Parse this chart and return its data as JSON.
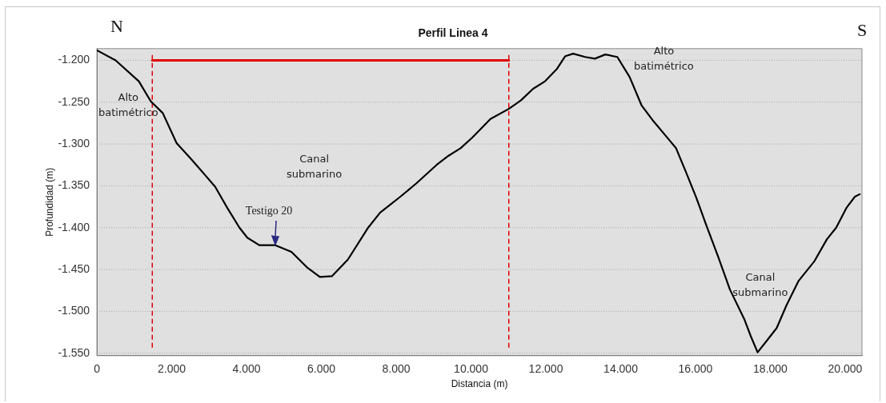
{
  "chart_data": {
    "type": "line",
    "title": "Perfil Linea 4",
    "xlabel": "Distancia (m)",
    "ylabel": "Profundidad (m)",
    "series": [
      {
        "color": "#000000",
        "x": [
          0,
          500,
          1120,
          1440,
          1760,
          2130,
          2520,
          3160,
          3480,
          3810,
          4020,
          4340,
          4770,
          5200,
          5630,
          5960,
          6280,
          6710,
          7250,
          7570,
          8110,
          8540,
          9080,
          9400,
          9720,
          10040,
          10520,
          11010,
          11330,
          11660,
          11980,
          12300,
          12520,
          12730,
          13050,
          13310,
          13590,
          13910,
          14240,
          14560,
          14880,
          15200,
          15480,
          15740,
          16020,
          16280,
          16600,
          16920,
          17310,
          17480,
          17660,
          17890,
          18170,
          18430,
          18750,
          19180,
          19510,
          19760,
          20040,
          20260,
          20390
        ],
        "values": [
          -1188,
          -1200,
          -1225,
          -1249,
          -1263,
          -1299,
          -1318,
          -1351,
          -1376,
          -1400,
          -1412,
          -1421,
          -1421,
          -1429,
          -1448,
          -1459,
          -1458,
          -1438,
          -1400,
          -1382,
          -1363,
          -1347,
          -1325,
          -1314,
          -1305,
          -1292,
          -1270,
          -1258,
          -1248,
          -1234,
          -1225,
          -1210,
          -1195,
          -1192,
          -1196,
          -1198,
          -1193,
          -1196,
          -1220,
          -1254,
          -1273,
          -1290,
          -1305,
          -1333,
          -1364,
          -1396,
          -1434,
          -1474,
          -1510,
          -1530,
          -1549,
          -1536,
          -1520,
          -1493,
          -1464,
          -1440,
          -1414,
          -1400,
          -1376,
          -1363,
          -1360
        ]
      },
      {
        "type": "line",
        "color": "#e00000",
        "x": [
          1480,
          11010
        ],
        "values": [
          -1200,
          -1200
        ]
      }
    ],
    "xlim": [
      0,
      20450
    ],
    "ylim": [
      -1553,
      -1186
    ],
    "xticks": [
      0,
      {
        "value": 2000,
        "label": "2.000"
      },
      {
        "value": 4000,
        "label": "4.000"
      },
      {
        "value": 6000,
        "label": "6.000"
      },
      {
        "value": 8000,
        "label": "8.000"
      },
      {
        "value": 10000,
        "label": "10.000"
      },
      {
        "value": 12000,
        "label": "12.000"
      },
      {
        "value": 14000,
        "label": "14.000"
      },
      {
        "value": 16000,
        "label": "16.000"
      },
      {
        "value": 18000,
        "label": "18.000"
      },
      {
        "value": 20000,
        "label": "20.000"
      }
    ],
    "yticks": [
      {
        "value": -1550,
        "label": "-1.550"
      },
      {
        "value": -1500,
        "label": "-1.500"
      },
      {
        "value": -1450,
        "label": "-1.450"
      },
      {
        "value": -1400,
        "label": "-1.400"
      },
      {
        "value": -1350,
        "label": "-1.350"
      },
      {
        "value": -1300,
        "label": "-1.300"
      },
      {
        "value": -1250,
        "label": "-1.250"
      },
      {
        "value": -1200,
        "label": "-1.200"
      }
    ],
    "grid": "y",
    "marker": "none",
    "line_style": "solid",
    "legend": false,
    "ref_lines": [
      {
        "axis": "x",
        "value": 1480,
        "color": "#e00000",
        "line_style": "dashed"
      },
      {
        "axis": "x",
        "value": 11010,
        "color": "#e00000",
        "line_style": "dashed"
      }
    ],
    "annotations": [
      "N",
      "S",
      "Alto\nbatimétrico",
      "Canal\nsubmarino",
      "Alto\nbatimétrico",
      "Canal\nsubmarino",
      {
        "text": "Testigo 20",
        "x": 4770,
        "y": -1421
      }
    ]
  }
}
